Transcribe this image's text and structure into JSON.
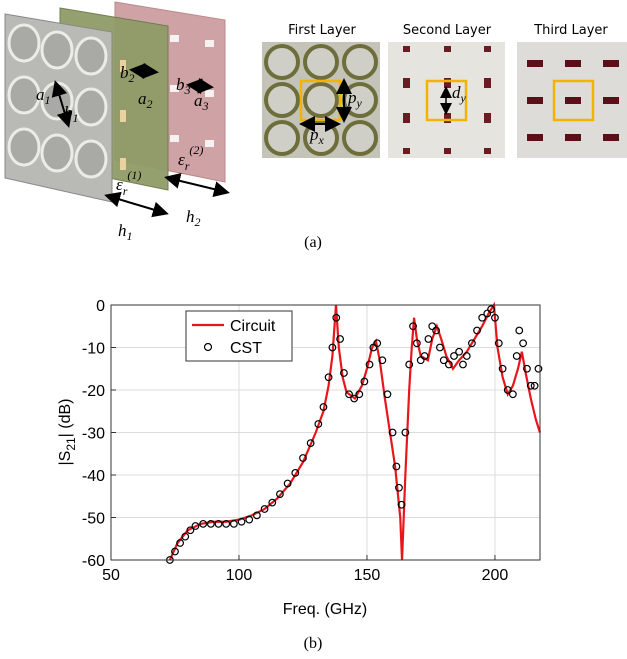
{
  "panel_a": {
    "layer_titles": [
      "First Layer",
      "Second Layer",
      "Third Layer"
    ],
    "symbols": [
      {
        "main": "a",
        "sub": "1"
      },
      {
        "main": "b",
        "sub": "1"
      },
      {
        "main": "b",
        "sub": "2"
      },
      {
        "main": "a",
        "sub": "2"
      },
      {
        "main": "b",
        "sub": "3"
      },
      {
        "main": "a",
        "sub": "3"
      },
      {
        "main": "ε",
        "sub": "r",
        "sup": "(1)"
      },
      {
        "main": "ε",
        "sub": "r",
        "sup": "(2)"
      },
      {
        "main": "h",
        "sub": "1"
      },
      {
        "main": "h",
        "sub": "2"
      },
      {
        "main": "p",
        "sub": "x"
      },
      {
        "main": "p",
        "sub": "y"
      },
      {
        "main": "d",
        "sub": "y"
      }
    ],
    "caption": "(a)"
  },
  "panel_b": {
    "caption": "(b)"
  },
  "chart_data": {
    "type": "line",
    "x_label": "Freq. (GHz)",
    "y_label": {
      "before": "|S",
      "sub": "21",
      "after": "| (dB)"
    },
    "xlim": [
      50,
      217.6
    ],
    "xticks": [
      50,
      100,
      150,
      200
    ],
    "ylim": [
      -60,
      0
    ],
    "yticks": [
      -60,
      -50,
      -40,
      -30,
      -20,
      -10,
      0
    ],
    "grid": true,
    "legend": "upper left",
    "series": [
      {
        "name": "Circuit",
        "color": "#e8161b",
        "style": "line",
        "x": [
          73,
          76,
          80,
          85,
          90,
          95,
          100,
          105,
          110,
          115,
          120,
          125,
          130,
          133,
          135,
          136.5,
          137.9,
          139,
          140.5,
          142,
          145.3,
          148,
          150,
          152,
          153.5,
          155,
          157,
          159,
          161,
          163,
          163.7,
          165,
          166.5,
          167.5,
          168.4,
          169.5,
          171,
          173.8,
          175.5,
          177.3,
          179,
          181,
          183.6,
          186,
          189,
          192,
          195,
          197.5,
          199.6,
          201,
          203,
          205,
          207,
          209,
          210.5,
          212,
          214,
          216,
          217.6
        ],
        "values": [
          -60,
          -56,
          -53,
          -51.5,
          -51,
          -51,
          -50.5,
          -49.5,
          -48,
          -45.5,
          -42,
          -37,
          -30,
          -25,
          -19,
          -12,
          0,
          -10,
          -17,
          -20.5,
          -22,
          -19,
          -15,
          -10,
          -8.5,
          -13,
          -22,
          -30,
          -38,
          -50,
          -60,
          -40,
          -20,
          -10,
          -3,
          -8,
          -12,
          -13,
          -8,
          -5,
          -8,
          -12,
          -15,
          -13,
          -11,
          -8,
          -5,
          -2,
          0,
          -10,
          -17,
          -21,
          -19,
          -15,
          -11,
          -16,
          -22,
          -27,
          -30
        ]
      },
      {
        "name": "CST",
        "color": "#000000",
        "style": "marker",
        "x": [
          73,
          75,
          77,
          79,
          81,
          83,
          86,
          89,
          92,
          95,
          98,
          101,
          104,
          107,
          110,
          113,
          116,
          119,
          122,
          125,
          128,
          131,
          133,
          135,
          136.5,
          138,
          139.5,
          141,
          143,
          145,
          147,
          149,
          151,
          152.5,
          154,
          156,
          158,
          160,
          161.5,
          162.5,
          163.5,
          165,
          166.5,
          168,
          169.5,
          171,
          172.5,
          174,
          175.5,
          177,
          178.5,
          180,
          182,
          184,
          186,
          187.5,
          189,
          191,
          193,
          195,
          197,
          198.5,
          200,
          201.5,
          203,
          205,
          207,
          208.5,
          209.5,
          211,
          212.5,
          214,
          215.5,
          217
        ],
        "values": [
          -60,
          -58,
          -56,
          -54.5,
          -53,
          -52,
          -51.5,
          -51.5,
          -51.5,
          -51.5,
          -51.5,
          -51,
          -50.5,
          -49.5,
          -48,
          -46.5,
          -44.5,
          -42,
          -39.5,
          -36,
          -32.5,
          -28,
          -24,
          -17,
          -10,
          -3,
          -8,
          -16,
          -21,
          -22,
          -21,
          -18,
          -14,
          -10,
          -9,
          -13,
          -21,
          -30,
          -38,
          -43,
          -47,
          -30,
          -14,
          -5,
          -9,
          -13,
          -12,
          -8,
          -5,
          -6,
          -10,
          -13,
          -14,
          -12,
          -11,
          -14,
          -12,
          -9,
          -6,
          -3,
          -2,
          -1,
          -3,
          -9,
          -15,
          -20,
          -21,
          -12,
          -6,
          -9,
          -15,
          -19,
          -19,
          -15
        ]
      }
    ]
  }
}
